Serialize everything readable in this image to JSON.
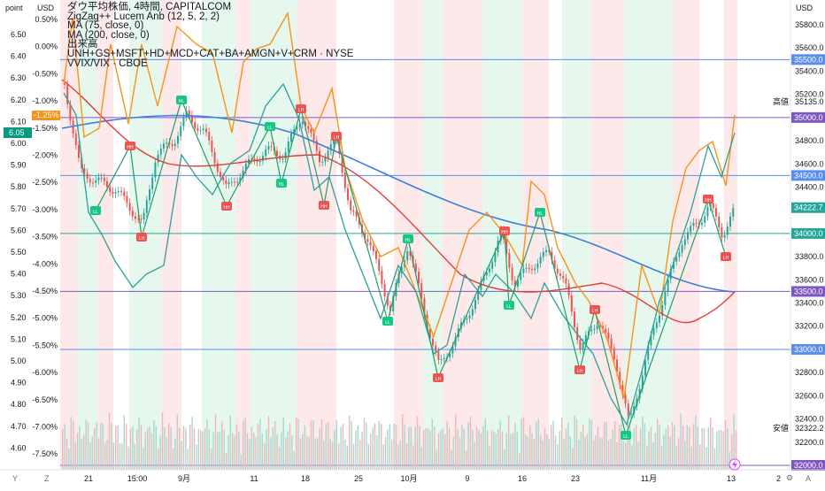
{
  "header": {
    "left_axis_title": "point",
    "mid_axis_title": "USD",
    "right_axis_title": "USD"
  },
  "legend": [
    "ダウ平均株価, 4時間, CAPITALCOM",
    "ZigZag++ Lucem Anb (12, 5, 2, 2)",
    "MA (75, close, 0)",
    "MA (200, close, 0)",
    "出来高",
    "UNH+GS+MSFT+HD+MCD+CAT+BA+AMGN+V+CRM · NYSE",
    "VVIX/VIX · CBOE"
  ],
  "left_axis": {
    "ticks": [
      "6.50",
      "6.40",
      "6.30",
      "6.20",
      "6.10",
      "6.00",
      "5.90",
      "5.80",
      "5.70",
      "5.60",
      "5.50",
      "5.40",
      "5.30",
      "5.20",
      "5.10",
      "5.00",
      "4.90",
      "4.80",
      "4.70",
      "4.60"
    ],
    "current_value": "6.05",
    "current_color": "#089981"
  },
  "pct_axis": {
    "ticks": [
      "0.50%",
      "0.00%",
      "-0.50%",
      "-1.00%",
      "-1.50%",
      "-2.00%",
      "-2.50%",
      "-3.00%",
      "-3.50%",
      "-4.00%",
      "-4.50%",
      "-5.00%",
      "-5.50%",
      "-6.00%",
      "-6.50%",
      "-7.00%",
      "-7.50%"
    ],
    "current_value": "-1.25%",
    "current_color": "#f7931a"
  },
  "right_axis": {
    "ticks": [
      "35800.0",
      "35600.0",
      "35400.0",
      "35200.0",
      "34800.0",
      "34600.0",
      "34400.0",
      "33800.0",
      "33600.0",
      "33400.0",
      "33200.0",
      "32800.0",
      "32600.0",
      "32400.0",
      "32200.0"
    ],
    "levels": [
      {
        "value": "35500.0",
        "color": "#5b8def"
      },
      {
        "value": "35000.0",
        "color": "#7e57c2"
      },
      {
        "value": "34500.0",
        "color": "#5b8def"
      },
      {
        "value": "34000.0",
        "color": "#26a69a"
      },
      {
        "value": "33500.0",
        "color": "#7e57c2"
      },
      {
        "value": "33000.0",
        "color": "#5b8def"
      },
      {
        "value": "32000.0",
        "color": "#7e57c2"
      }
    ],
    "current_price": "34222.7",
    "high_label": "高値",
    "high_value": "35135.0",
    "low_label": "安値",
    "low_value": "32322.2"
  },
  "time_axis": {
    "labels": [
      "21",
      "15:00",
      "9月",
      "11",
      "18",
      "25",
      "10月",
      "9",
      "16",
      "23",
      "11月",
      "13"
    ],
    "zoom_label": "2"
  },
  "zigzag_labels": [
    "LL",
    "HH",
    "LH",
    "HL",
    "HH",
    "LL",
    "HL",
    "LH",
    "HH",
    "LH",
    "LL",
    "HL",
    "LH",
    "HH",
    "LL",
    "HL",
    "LH",
    "LH",
    "LL",
    "HH",
    "LH",
    "HL"
  ],
  "corner": {
    "left_btn": "Y",
    "z_btn": "Z",
    "gear": "⚙",
    "auto": "A"
  },
  "colors": {
    "up": "#26a69a",
    "down": "#ef5350",
    "ma75": "#e53935",
    "ma200": "#2962ff",
    "orange": "#f7931a",
    "teal": "#26a69a",
    "green_bg": "#e6f7ee",
    "red_bg": "#fde9ea"
  }
}
